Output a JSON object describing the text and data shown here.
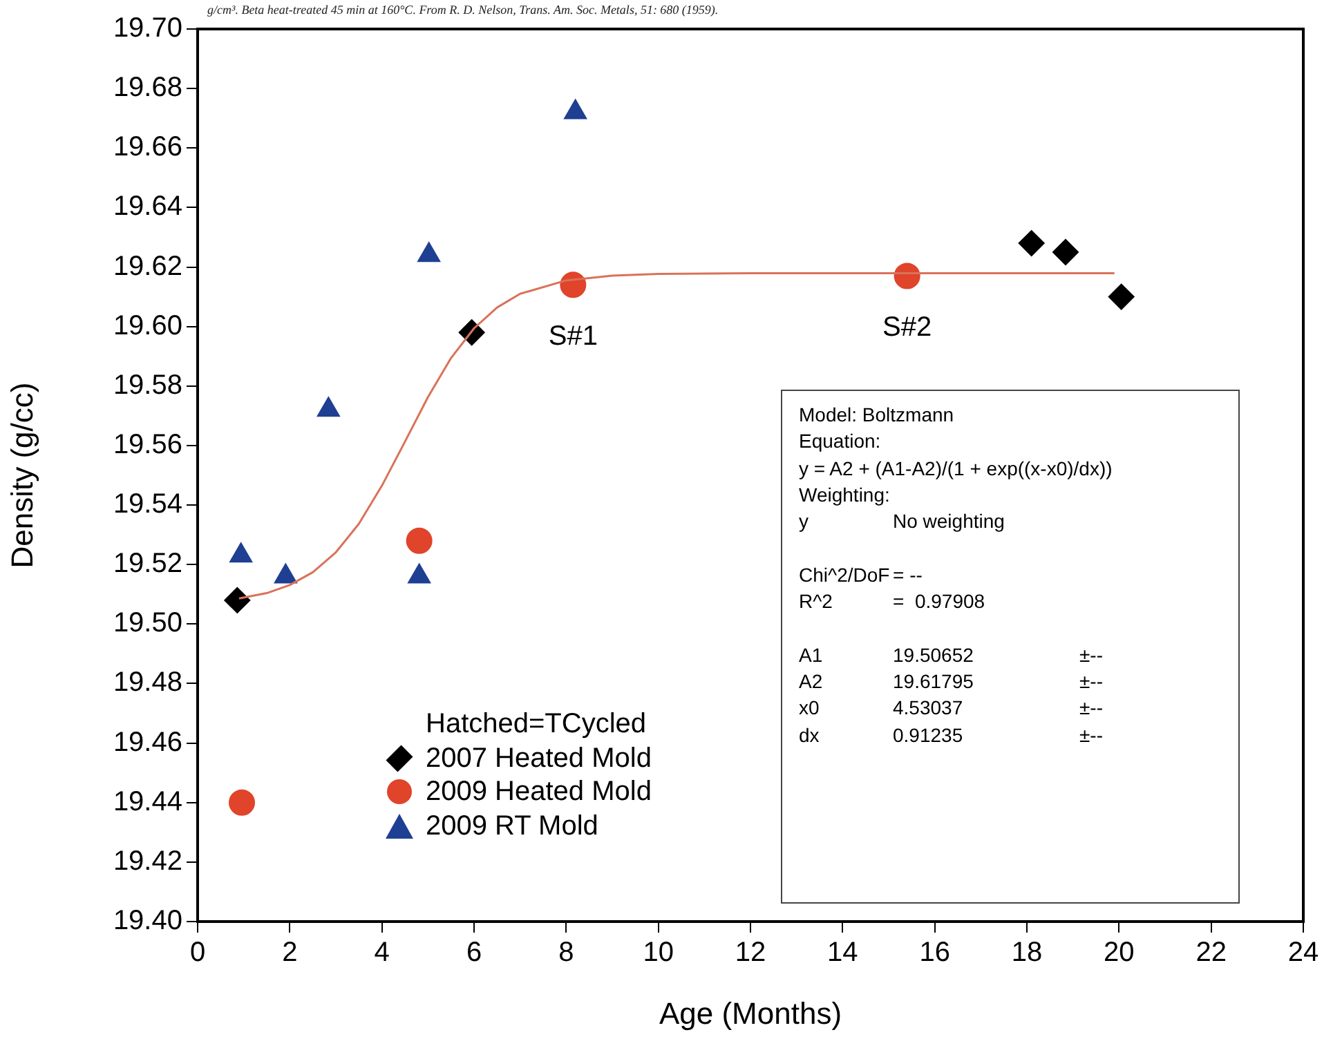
{
  "chart_data": {
    "type": "scatter",
    "xlabel": "Age (Months)",
    "ylabel": "Density (g/cc)",
    "legend_title": "Hatched=TCycled",
    "legend": "bottom left",
    "grid": false,
    "xlim": [
      0,
      24
    ],
    "xticks": [
      0,
      2,
      4,
      6,
      8,
      10,
      12,
      14,
      16,
      18,
      20,
      22,
      24
    ],
    "ylim": [
      19.4,
      19.7
    ],
    "yticks": [
      {
        "value": 19.4,
        "label": "19.40"
      },
      19.42,
      19.44,
      19.46,
      19.48,
      {
        "value": 19.5,
        "label": "19.50"
      },
      19.52,
      19.54,
      19.56,
      19.58,
      {
        "value": 19.6,
        "label": "19.60"
      },
      19.62,
      19.64,
      19.66,
      19.68,
      {
        "value": 19.7,
        "label": "19.70"
      }
    ],
    "series": [
      {
        "name": "2007 Heated Mold",
        "color": "#000000",
        "marker": "diamond",
        "x": [
          0.86,
          5.95,
          18.1,
          18.84,
          20.05
        ],
        "values": [
          19.508,
          19.598,
          19.628,
          19.625,
          19.61
        ]
      },
      {
        "name": "2009 Heated Mold",
        "color": "#e0442a",
        "marker": "circle",
        "x": [
          0.96,
          4.81,
          8.15,
          15.4
        ],
        "values": [
          19.44,
          19.528,
          19.614,
          19.617
        ]
      },
      {
        "name": "2009 RT Mold",
        "color": "#1f3f93",
        "marker": "triangle",
        "x": [
          0.94,
          1.91,
          2.84,
          4.81,
          5.02,
          8.2
        ],
        "values": [
          19.523,
          19.516,
          19.572,
          19.516,
          19.624,
          19.672
        ]
      },
      {
        "type": "line",
        "color": "#d9725a",
        "marker": "none",
        "x": [
          0.9,
          1.5,
          2,
          2.5,
          3,
          3.5,
          4,
          4.5,
          5,
          5.5,
          6,
          6.5,
          7,
          8,
          9,
          10,
          12,
          14,
          16,
          18,
          19.9
        ],
        "values": [
          19.5086,
          19.5104,
          19.5131,
          19.5174,
          19.5241,
          19.5337,
          19.5465,
          19.5613,
          19.5763,
          19.5894,
          19.5994,
          19.6064,
          19.611,
          19.6155,
          19.6171,
          19.6177,
          19.6179,
          19.6179,
          19.6179,
          19.6179,
          19.6179
        ]
      }
    ],
    "annotations": [
      "g/cm³. Beta heat-treated 45 min at 160°C. From R. D. Nelson, Trans. Am. Soc. Metals, 51: 680 (1959).",
      {
        "text": "S#1",
        "x": 8.15,
        "y": 19.614
      },
      {
        "text": "S#2",
        "x": 15.4,
        "y": 19.617
      },
      "Model: Boltzmann",
      "Equation:",
      "y = A2 + (A1-A2)/(1 + exp((x-x0)/dx))",
      "Weighting:",
      "y\tNo weighting",
      "Chi^2/DoF\t= --",
      "R^2\t=  0.97908",
      "A1\t19.50652\t±--",
      "A2\t19.61795\t±--",
      "x0\t4.53037\t±--",
      "dx\t0.91235\t±--"
    ]
  }
}
